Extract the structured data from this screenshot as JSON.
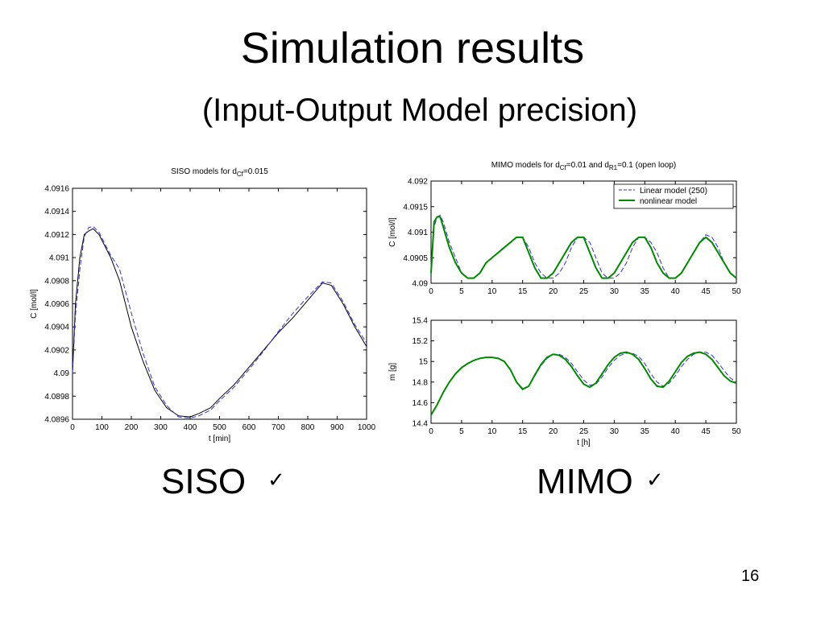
{
  "slide": {
    "title": "Simulation results",
    "subtitle": "(Input-Output Model precision)",
    "siso_label": "SISO",
    "mimo_label": "MIMO",
    "check_icon": "✓",
    "page_number": "16"
  },
  "chart_data": [
    {
      "id": "siso",
      "type": "line",
      "title": "SISO models for d",
      "title_sub": "Cf",
      "title_tail": "=0.015",
      "xlabel": "t [min]",
      "ylabel": "C [mol/l]",
      "xlim": [
        0,
        1000
      ],
      "ylim": [
        4.0896,
        4.0916
      ],
      "xticks": [
        "0",
        "100",
        "200",
        "300",
        "400",
        "500",
        "600",
        "700",
        "800",
        "900",
        "1000"
      ],
      "yticks": [
        "4.0896",
        "4.0898",
        "4.09",
        "4.0902",
        "4.0904",
        "4.0906",
        "4.0908",
        "4.091",
        "4.0912",
        "4.0914",
        "4.0916"
      ],
      "grid": false,
      "series": [
        {
          "name": "",
          "color": "#000000",
          "dash": "none",
          "x": [
            0,
            10,
            25,
            40,
            55,
            70,
            90,
            110,
            130,
            160,
            200,
            240,
            280,
            320,
            360,
            400,
            430,
            470,
            500,
            550,
            600,
            650,
            700,
            750,
            800,
            850,
            880,
            920,
            960,
            1000
          ],
          "y": [
            4.09,
            4.0906,
            4.091,
            4.0912,
            4.09123,
            4.09125,
            4.0912,
            4.0911,
            4.091,
            4.0908,
            4.0904,
            4.0901,
            4.08985,
            4.0897,
            4.08963,
            4.08962,
            4.08965,
            4.0897,
            4.08978,
            4.0899,
            4.09005,
            4.0902,
            4.09035,
            4.09048,
            4.09063,
            4.09078,
            4.09076,
            4.0906,
            4.0904,
            4.09023
          ]
        },
        {
          "name": "",
          "color": "#3333cc",
          "dash": "6,3",
          "x": [
            0,
            10,
            25,
            40,
            55,
            70,
            90,
            110,
            130,
            160,
            200,
            240,
            280,
            320,
            360,
            400,
            430,
            470,
            500,
            550,
            600,
            650,
            700,
            750,
            800,
            850,
            880,
            920,
            960,
            1000
          ],
          "y": [
            4.09,
            4.0905,
            4.0909,
            4.09118,
            4.09126,
            4.09127,
            4.09122,
            4.09112,
            4.09102,
            4.0909,
            4.09052,
            4.09017,
            4.08988,
            4.08972,
            4.08962,
            4.08961,
            4.08963,
            4.08968,
            4.08976,
            4.08988,
            4.09003,
            4.09019,
            4.09036,
            4.09052,
            4.09066,
            4.09079,
            4.09078,
            4.09062,
            4.09042,
            4.09026
          ]
        }
      ]
    },
    {
      "id": "mimo-c",
      "type": "line",
      "title": "MIMO models for d",
      "title_sub": "Cf",
      "title_mid": "=0.01 and d",
      "title_sub2": "R1",
      "title_tail": "=0.1 (open loop)",
      "xlabel": "",
      "ylabel": "C [mol/l]",
      "xlim": [
        0,
        50
      ],
      "ylim": [
        4.09,
        4.092
      ],
      "xticks": [
        "0",
        "5",
        "10",
        "15",
        "20",
        "25",
        "30",
        "35",
        "40",
        "45",
        "50"
      ],
      "yticks": [
        "4.09",
        "4.0905",
        "4.091",
        "4.0915",
        "4.092"
      ],
      "grid": false,
      "legend": "top-right",
      "series": [
        {
          "name": "Linear model (250)",
          "color": "#3333cc",
          "dash": "6,3",
          "x": [
            0,
            0.5,
            1,
            1.5,
            2,
            3,
            4,
            5,
            6,
            7,
            8,
            9,
            10,
            11,
            12,
            13,
            14,
            15,
            16,
            17,
            18,
            19,
            20,
            21,
            22,
            23,
            24,
            25,
            26,
            27,
            28,
            29,
            30,
            31,
            32,
            33,
            34,
            35,
            36,
            37,
            38,
            39,
            40,
            41,
            42,
            43,
            44,
            45,
            46,
            47,
            48,
            49,
            50
          ],
          "y": [
            4.0903,
            4.0911,
            4.0913,
            4.09133,
            4.0912,
            4.0908,
            4.0905,
            4.0902,
            4.0901,
            4.0901,
            4.0902,
            4.0904,
            4.0905,
            4.0906,
            4.0907,
            4.0908,
            4.0909,
            4.0909,
            4.0907,
            4.0904,
            4.0902,
            4.0901,
            4.0901,
            4.0902,
            4.0904,
            4.0907,
            4.0909,
            4.0909,
            4.0908,
            4.0905,
            4.0902,
            4.0901,
            4.0901,
            4.0902,
            4.0904,
            4.0907,
            4.0909,
            4.0909,
            4.0908,
            4.0906,
            4.0903,
            4.0901,
            4.0901,
            4.0902,
            4.0904,
            4.0906,
            4.0908,
            4.09095,
            4.0909,
            4.0907,
            4.0904,
            4.0902,
            4.0901
          ]
        },
        {
          "name": "nonlinear model",
          "color": "#008800",
          "dash": "none",
          "x": [
            0,
            0.5,
            1,
            1.5,
            2,
            3,
            4,
            5,
            6,
            7,
            8,
            9,
            10,
            11,
            12,
            13,
            14,
            15,
            16,
            17,
            18,
            19,
            20,
            21,
            22,
            23,
            24,
            25,
            26,
            27,
            28,
            29,
            30,
            31,
            32,
            33,
            34,
            35,
            36,
            37,
            38,
            39,
            40,
            41,
            42,
            43,
            44,
            45,
            46,
            47,
            48,
            49,
            50
          ],
          "y": [
            4.0902,
            4.0912,
            4.0913,
            4.0913,
            4.0911,
            4.0907,
            4.0904,
            4.0902,
            4.0901,
            4.0901,
            4.0902,
            4.0904,
            4.0905,
            4.0906,
            4.0907,
            4.0908,
            4.0909,
            4.0909,
            4.0906,
            4.0903,
            4.0901,
            4.0901,
            4.0902,
            4.0904,
            4.0906,
            4.0908,
            4.0909,
            4.0909,
            4.0906,
            4.0903,
            4.0901,
            4.0901,
            4.0902,
            4.0904,
            4.0906,
            4.0908,
            4.0909,
            4.0909,
            4.0907,
            4.0904,
            4.0902,
            4.0901,
            4.0901,
            4.0902,
            4.0904,
            4.0906,
            4.0908,
            4.0909,
            4.0908,
            4.0906,
            4.0904,
            4.0902,
            4.0901
          ]
        }
      ]
    },
    {
      "id": "mimo-m",
      "type": "line",
      "title": "",
      "xlabel": "t [h]",
      "ylabel": "m [g]",
      "xlim": [
        0,
        50
      ],
      "ylim": [
        14.4,
        15.4
      ],
      "xticks": [
        "0",
        "5",
        "10",
        "15",
        "20",
        "25",
        "30",
        "35",
        "40",
        "45",
        "50"
      ],
      "yticks": [
        "14.4",
        "14.6",
        "14.8",
        "15",
        "15.2",
        "15.4"
      ],
      "grid": false,
      "series": [
        {
          "name": "Linear model (250)",
          "color": "#3333cc",
          "dash": "6,3",
          "x": [
            0,
            1,
            2,
            3,
            4,
            5,
            6,
            7,
            8,
            9,
            10,
            11,
            12,
            13,
            14,
            15,
            16,
            17,
            18,
            19,
            20,
            21,
            22,
            23,
            24,
            25,
            26,
            27,
            28,
            29,
            30,
            31,
            32,
            33,
            34,
            35,
            36,
            37,
            38,
            39,
            40,
            41,
            42,
            43,
            44,
            45,
            46,
            47,
            48,
            49,
            50
          ],
          "y": [
            14.48,
            14.58,
            14.7,
            14.8,
            14.88,
            14.94,
            14.98,
            15.01,
            15.03,
            15.04,
            15.04,
            15.03,
            15.0,
            14.92,
            14.8,
            14.74,
            14.76,
            14.86,
            14.96,
            15.03,
            15.07,
            15.07,
            15.04,
            14.98,
            14.9,
            14.82,
            14.77,
            14.78,
            14.85,
            14.94,
            15.01,
            15.06,
            15.08,
            15.08,
            15.05,
            14.98,
            14.88,
            14.8,
            14.76,
            14.79,
            14.86,
            14.95,
            15.02,
            15.07,
            15.09,
            15.09,
            15.06,
            14.99,
            14.91,
            14.84,
            14.8
          ]
        },
        {
          "name": "nonlinear model",
          "color": "#008800",
          "dash": "none",
          "x": [
            0,
            1,
            2,
            3,
            4,
            5,
            6,
            7,
            8,
            9,
            10,
            11,
            12,
            13,
            14,
            15,
            16,
            17,
            18,
            19,
            20,
            21,
            22,
            23,
            24,
            25,
            26,
            27,
            28,
            29,
            30,
            31,
            32,
            33,
            34,
            35,
            36,
            37,
            38,
            39,
            40,
            41,
            42,
            43,
            44,
            45,
            46,
            47,
            48,
            49,
            50
          ],
          "y": [
            14.48,
            14.58,
            14.7,
            14.8,
            14.88,
            14.94,
            14.98,
            15.01,
            15.03,
            15.04,
            15.04,
            15.03,
            15.0,
            14.92,
            14.8,
            14.73,
            14.76,
            14.87,
            14.97,
            15.04,
            15.07,
            15.06,
            15.02,
            14.95,
            14.86,
            14.78,
            14.75,
            14.79,
            14.88,
            14.97,
            15.04,
            15.08,
            15.09,
            15.07,
            15.02,
            14.93,
            14.83,
            14.76,
            14.75,
            14.81,
            14.9,
            14.99,
            15.05,
            15.08,
            15.09,
            15.07,
            15.02,
            14.94,
            14.86,
            14.81,
            14.79
          ]
        }
      ]
    }
  ]
}
